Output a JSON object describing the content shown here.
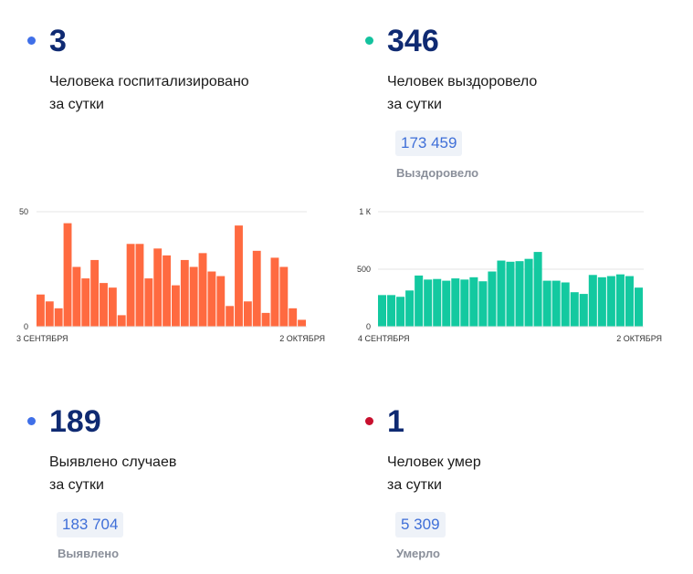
{
  "colors": {
    "blue_dot": "#3f6fe8",
    "teal_dot": "#13c29e",
    "red_dot": "#c8102e",
    "orange_bar": "#ff6a40",
    "teal_bar": "#13c9a0",
    "number": "#0f2a72"
  },
  "hospitalized": {
    "value": "3",
    "line1": "Человека госпитализировано",
    "line2": "за сутки"
  },
  "recovered": {
    "value": "346",
    "line1": "Человек выздоровело",
    "line2": "за сутки",
    "total": "173 459",
    "total_label": "Выздоровело"
  },
  "detected": {
    "value": "189",
    "line1": "Выявлено случаев",
    "line2": "за сутки",
    "total": "183 704",
    "total_label": "Выявлено"
  },
  "died": {
    "value": "1",
    "line1": "Человек умер",
    "line2": "за сутки",
    "total": "5 309",
    "total_label": "Умерло"
  },
  "chart_data": [
    {
      "type": "bar",
      "color": "#ff6a40",
      "ylim": [
        0,
        50
      ],
      "yticks": [
        {
          "value": 0,
          "label": "0"
        },
        {
          "value": 50,
          "label": "50"
        }
      ],
      "xticks": [
        "3 СЕНТЯБРЯ",
        "2 ОКТЯБРЯ"
      ],
      "values": [
        14,
        11,
        8,
        45,
        26,
        21,
        29,
        19,
        17,
        5,
        36,
        36,
        21,
        34,
        31,
        18,
        29,
        26,
        32,
        24,
        22,
        9,
        44,
        11,
        33,
        6,
        30,
        26,
        8,
        3
      ]
    },
    {
      "type": "bar",
      "color": "#13c9a0",
      "ylim": [
        0,
        1000
      ],
      "yticks": [
        {
          "value": 0,
          "label": "0"
        },
        {
          "value": 500,
          "label": "500"
        },
        {
          "value": 1000,
          "label": "1 К"
        }
      ],
      "xticks": [
        "4 СЕНТЯБРЯ",
        "2 ОКТЯБРЯ"
      ],
      "values": [
        275,
        275,
        260,
        315,
        445,
        410,
        415,
        400,
        420,
        410,
        430,
        395,
        480,
        575,
        565,
        570,
        590,
        650,
        400,
        400,
        385,
        300,
        285,
        450,
        430,
        440,
        455,
        440,
        340
      ]
    }
  ]
}
